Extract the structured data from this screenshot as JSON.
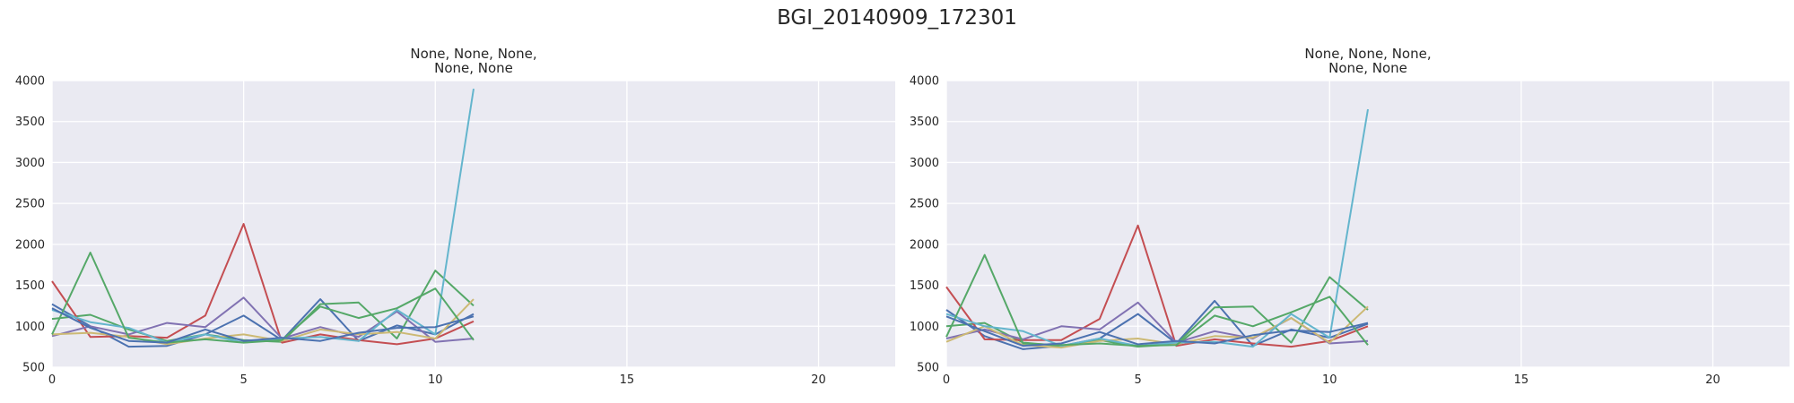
{
  "figure": {
    "title": "BGI_20140909_172301"
  },
  "colors": {
    "background": "#eaeaf2",
    "grid": "#ffffff",
    "series": [
      "#4c72b0",
      "#55a868",
      "#c44e52",
      "#8172b2",
      "#ccb974",
      "#64b5cd"
    ]
  },
  "chart_data": [
    {
      "type": "line",
      "title_lines": [
        "None, None, None,",
        "None, None"
      ],
      "xlim": [
        0,
        22
      ],
      "ylim": [
        500,
        4000
      ],
      "xticks": [
        0,
        5,
        10,
        15,
        20
      ],
      "yticks": [
        500,
        1000,
        1500,
        2000,
        2500,
        3000,
        3500,
        4000
      ],
      "grid": true,
      "x": [
        0,
        1,
        2,
        3,
        4,
        5,
        6,
        7,
        8,
        9,
        10,
        11
      ],
      "series": [
        {
          "color": "#4c72b0",
          "values": [
            1270,
            1000,
            750,
            760,
            900,
            1130,
            830,
            1330,
            820,
            1010,
            900,
            1150
          ]
        },
        {
          "color": "#55a868",
          "values": [
            1090,
            1140,
            960,
            820,
            900,
            830,
            810,
            1270,
            1290,
            850,
            1680,
            1250
          ]
        },
        {
          "color": "#c44e52",
          "values": [
            1550,
            870,
            880,
            860,
            1130,
            2250,
            800,
            900,
            830,
            780,
            850,
            1060
          ]
        },
        {
          "color": "#8172b2",
          "values": [
            880,
            1000,
            900,
            1040,
            990,
            1350,
            850,
            990,
            870,
            1180,
            810,
            850
          ]
        },
        {
          "color": "#ccb974",
          "values": [
            900,
            920,
            870,
            780,
            850,
            900,
            820,
            960,
            900,
            930,
            850,
            1330
          ]
        },
        {
          "color": "#64b5cd",
          "values": [
            1200,
            1050,
            980,
            800,
            900,
            800,
            850,
            870,
            820,
            1200,
            900,
            3900
          ]
        },
        {
          "color": "#55a868",
          "values": [
            900,
            1900,
            860,
            800,
            840,
            800,
            830,
            1240,
            1100,
            1220,
            1460,
            830
          ]
        },
        {
          "color": "#4c72b0",
          "values": [
            1220,
            980,
            820,
            800,
            960,
            820,
            860,
            820,
            920,
            980,
            990,
            1120
          ]
        }
      ]
    },
    {
      "type": "line",
      "title_lines": [
        "None, None, None,",
        "None, None"
      ],
      "xlim": [
        0,
        22
      ],
      "ylim": [
        500,
        4000
      ],
      "xticks": [
        0,
        5,
        10,
        15,
        20
      ],
      "yticks": [
        500,
        1000,
        1500,
        2000,
        2500,
        3000,
        3500,
        4000
      ],
      "grid": true,
      "x": [
        0,
        1,
        2,
        3,
        4,
        5,
        6,
        7,
        8,
        9,
        10,
        11
      ],
      "series": [
        {
          "color": "#4c72b0",
          "values": [
            1200,
            880,
            720,
            760,
            850,
            1150,
            790,
            1310,
            760,
            960,
            860,
            1030
          ]
        },
        {
          "color": "#55a868",
          "values": [
            1000,
            1040,
            800,
            760,
            830,
            750,
            780,
            1230,
            1240,
            800,
            1600,
            1200
          ]
        },
        {
          "color": "#c44e52",
          "values": [
            1480,
            840,
            830,
            830,
            1090,
            2230,
            760,
            840,
            790,
            750,
            820,
            1000
          ]
        },
        {
          "color": "#8172b2",
          "values": [
            850,
            960,
            840,
            1000,
            960,
            1290,
            800,
            940,
            850,
            1100,
            790,
            820
          ]
        },
        {
          "color": "#ccb974",
          "values": [
            810,
            1000,
            770,
            740,
            820,
            850,
            780,
            880,
            860,
            1100,
            800,
            1240
          ]
        },
        {
          "color": "#64b5cd",
          "values": [
            1150,
            1000,
            940,
            760,
            850,
            760,
            800,
            810,
            750,
            1150,
            860,
            3650
          ]
        },
        {
          "color": "#55a868",
          "values": [
            870,
            1870,
            790,
            770,
            790,
            760,
            770,
            1130,
            1000,
            1170,
            1360,
            770
          ]
        },
        {
          "color": "#4c72b0",
          "values": [
            1120,
            940,
            760,
            790,
            930,
            780,
            820,
            790,
            890,
            950,
            930,
            1040
          ]
        }
      ]
    }
  ]
}
